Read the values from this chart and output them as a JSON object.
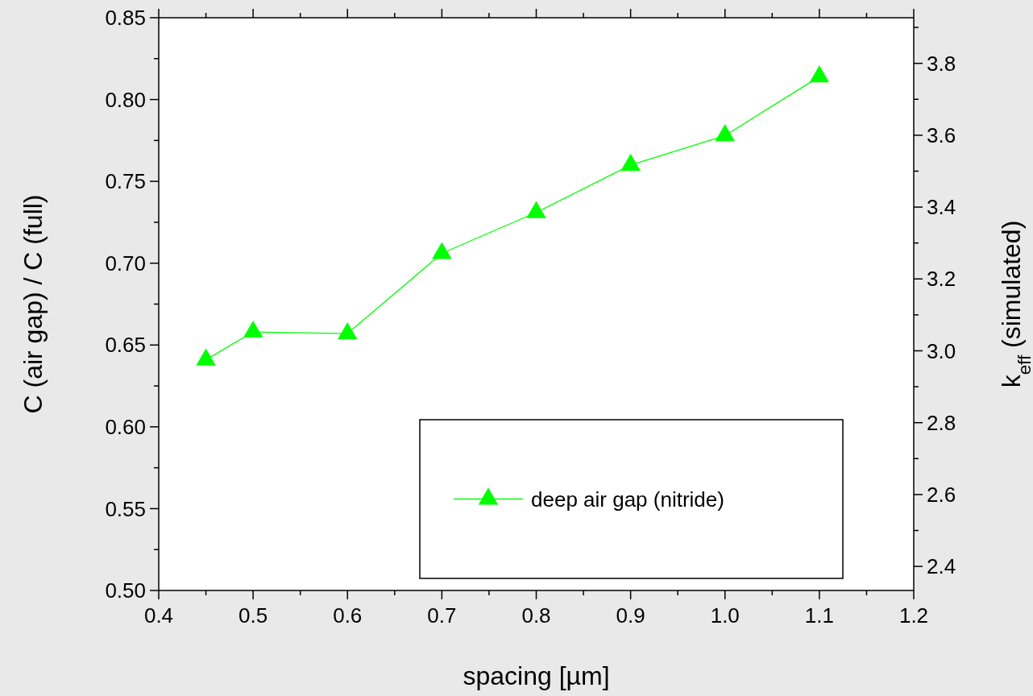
{
  "chart_data": {
    "type": "line",
    "xlabel": "spacing [µm]",
    "ylabel": "C (air gap) / C (full)",
    "y2label": "k$_{eff}$ (simulated)",
    "x": [
      0.45,
      0.5,
      0.6,
      0.7,
      0.8,
      0.9,
      1.0,
      1.1
    ],
    "series": [
      {
        "name": "deep air gap (nitride)",
        "color": "#00ff00",
        "values": [
          0.641,
          0.658,
          0.657,
          0.706,
          0.731,
          0.76,
          0.778,
          0.814
        ]
      }
    ],
    "xlim": [
      0.4,
      1.2
    ],
    "xticks": [
      0.4,
      {
        "value": 0.45,
        "label": null
      },
      0.5,
      {
        "value": 0.55,
        "label": null
      },
      0.6,
      {
        "value": 0.65,
        "label": null
      },
      0.7,
      {
        "value": 0.75,
        "label": null
      },
      0.8,
      {
        "value": 0.85,
        "label": null
      },
      0.9,
      {
        "value": 0.95,
        "label": null
      },
      {
        "value": 1.0,
        "label": "1.0"
      },
      {
        "value": 1.05,
        "label": null
      },
      1.1,
      {
        "value": 1.15,
        "label": null
      },
      1.2
    ],
    "ylim": [
      0.5,
      0.85
    ],
    "yticks": [
      {
        "value": 0.5,
        "label": "0.50"
      },
      {
        "value": 0.525,
        "label": null
      },
      0.55,
      {
        "value": 0.575,
        "label": null
      },
      {
        "value": 0.6,
        "label": "0.60"
      },
      {
        "value": 0.625,
        "label": null
      },
      0.65,
      {
        "value": 0.675,
        "label": null
      },
      {
        "value": 0.7,
        "label": "0.70"
      },
      {
        "value": 0.725,
        "label": null
      },
      0.75,
      {
        "value": 0.775,
        "label": null
      },
      {
        "value": 0.8,
        "label": "0.80"
      },
      {
        "value": 0.825,
        "label": null
      },
      0.85
    ],
    "y2lim": [
      2.333,
      3.927
    ],
    "y2ticks": [
      2.4,
      {
        "value": 2.5,
        "label": null
      },
      2.6,
      {
        "value": 2.7,
        "label": null
      },
      2.8,
      {
        "value": 2.9,
        "label": null
      },
      {
        "value": 3.0,
        "label": "3.0"
      },
      {
        "value": 3.1,
        "label": null
      },
      3.2,
      {
        "value": 3.3,
        "label": null
      },
      3.4,
      {
        "value": 3.5,
        "label": null
      },
      3.6,
      {
        "value": 3.7,
        "label": null
      },
      3.8,
      {
        "value": 3.9,
        "label": null
      }
    ],
    "legend": "bottom right",
    "marker": "triangle",
    "line_style": "solid",
    "grid": false
  }
}
